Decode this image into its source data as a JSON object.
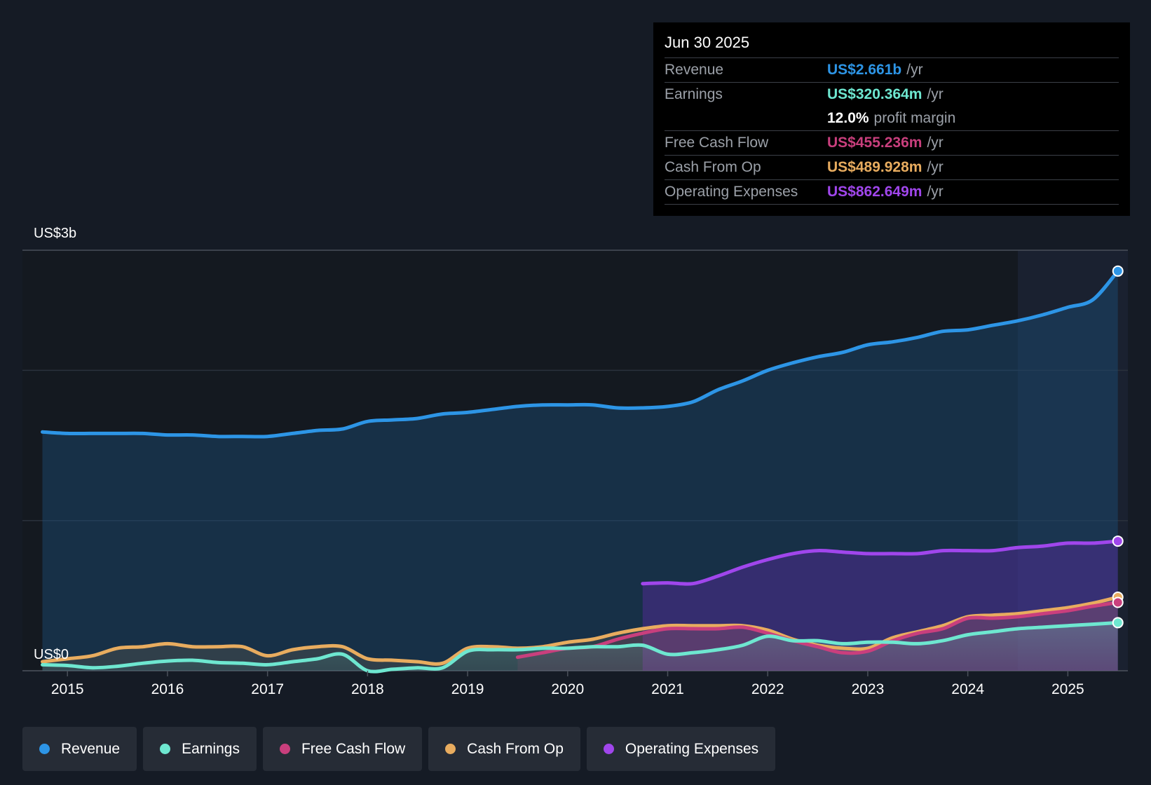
{
  "colors": {
    "revenue": "#2d95e6",
    "earnings": "#6ee7d0",
    "fcf": "#c93f7d",
    "cfo": "#e8ac5f",
    "opex": "#a046ec"
  },
  "tooltip": {
    "date": "Jun 30 2025",
    "rows": [
      {
        "label": "Revenue",
        "value": "US$2.661b",
        "unit": "/yr"
      },
      {
        "label": "Earnings",
        "value": "US$320.364m",
        "unit": "/yr"
      },
      {
        "margin_value": "12.0%",
        "margin_label": "profit margin"
      },
      {
        "label": "Free Cash Flow",
        "value": "US$455.236m",
        "unit": "/yr"
      },
      {
        "label": "Cash From Op",
        "value": "US$489.928m",
        "unit": "/yr"
      },
      {
        "label": "Operating Expenses",
        "value": "US$862.649m",
        "unit": "/yr"
      }
    ]
  },
  "legend": {
    "items": [
      {
        "label": "Revenue"
      },
      {
        "label": "Earnings"
      },
      {
        "label": "Free Cash Flow"
      },
      {
        "label": "Cash From Op"
      },
      {
        "label": "Operating Expenses"
      }
    ]
  },
  "chart_data": {
    "type": "area",
    "y_unit": "US$ billions",
    "ylim": [
      0,
      2.8
    ],
    "y_axis_labels": [
      {
        "value": 2.8,
        "label": "US$3b"
      },
      {
        "value": 0,
        "label": "US$0"
      }
    ],
    "gridlines": [
      0,
      1,
      2
    ],
    "x_ticks": [
      "2015",
      "2016",
      "2017",
      "2018",
      "2019",
      "2020",
      "2021",
      "2022",
      "2023",
      "2024",
      "2025"
    ],
    "xlim": [
      2014.55,
      2025.6
    ],
    "forecast_start": 2024.5,
    "series": [
      {
        "name": "Revenue",
        "key": "revenue",
        "x": [
          2014.75,
          2015.0,
          2015.25,
          2015.5,
          2015.75,
          2016.0,
          2016.25,
          2016.5,
          2016.75,
          2017.0,
          2017.25,
          2017.5,
          2017.75,
          2018.0,
          2018.25,
          2018.5,
          2018.75,
          2019.0,
          2019.25,
          2019.5,
          2019.75,
          2020.0,
          2020.25,
          2020.5,
          2020.75,
          2021.0,
          2021.25,
          2021.5,
          2021.75,
          2022.0,
          2022.25,
          2022.5,
          2022.75,
          2023.0,
          2023.25,
          2023.5,
          2023.75,
          2024.0,
          2024.25,
          2024.5,
          2024.75,
          2025.0,
          2025.25,
          2025.5
        ],
        "values": [
          1.59,
          1.58,
          1.58,
          1.58,
          1.58,
          1.57,
          1.57,
          1.56,
          1.56,
          1.56,
          1.58,
          1.6,
          1.61,
          1.66,
          1.67,
          1.68,
          1.71,
          1.72,
          1.74,
          1.76,
          1.77,
          1.77,
          1.77,
          1.75,
          1.75,
          1.76,
          1.79,
          1.87,
          1.93,
          2.0,
          2.05,
          2.09,
          2.12,
          2.17,
          2.19,
          2.22,
          2.26,
          2.27,
          2.3,
          2.33,
          2.37,
          2.42,
          2.47,
          2.661
        ]
      },
      {
        "name": "Earnings",
        "key": "earnings",
        "x": [
          2014.75,
          2015.0,
          2015.25,
          2015.5,
          2015.75,
          2016.0,
          2016.25,
          2016.5,
          2016.75,
          2017.0,
          2017.25,
          2017.5,
          2017.75,
          2018.0,
          2018.25,
          2018.5,
          2018.75,
          2019.0,
          2019.25,
          2019.5,
          2019.75,
          2020.0,
          2020.25,
          2020.5,
          2020.75,
          2021.0,
          2021.25,
          2021.5,
          2021.75,
          2022.0,
          2022.25,
          2022.5,
          2022.75,
          2023.0,
          2023.25,
          2023.5,
          2023.75,
          2024.0,
          2024.25,
          2024.5,
          2024.75,
          2025.0,
          2025.25,
          2025.5
        ],
        "values": [
          0.04,
          0.035,
          0.02,
          0.03,
          0.05,
          0.065,
          0.07,
          0.055,
          0.05,
          0.04,
          0.06,
          0.08,
          0.11,
          0.0,
          0.01,
          0.02,
          0.02,
          0.13,
          0.14,
          0.14,
          0.15,
          0.15,
          0.16,
          0.16,
          0.17,
          0.11,
          0.12,
          0.14,
          0.17,
          0.23,
          0.2,
          0.2,
          0.18,
          0.19,
          0.19,
          0.18,
          0.2,
          0.24,
          0.26,
          0.28,
          0.29,
          0.3,
          0.31,
          0.32
        ]
      },
      {
        "name": "Free Cash Flow",
        "key": "fcf",
        "x": [
          2019.5,
          2019.75,
          2020.0,
          2020.25,
          2020.5,
          2020.75,
          2021.0,
          2021.25,
          2021.5,
          2021.75,
          2022.0,
          2022.25,
          2022.5,
          2022.75,
          2023.0,
          2023.25,
          2023.5,
          2023.75,
          2024.0,
          2024.25,
          2024.5,
          2024.75,
          2025.0,
          2025.25,
          2025.5
        ],
        "values": [
          0.09,
          0.12,
          0.15,
          0.16,
          0.21,
          0.25,
          0.28,
          0.28,
          0.28,
          0.29,
          0.25,
          0.2,
          0.16,
          0.12,
          0.13,
          0.2,
          0.25,
          0.28,
          0.35,
          0.35,
          0.36,
          0.38,
          0.4,
          0.43,
          0.455
        ]
      },
      {
        "name": "Cash From Op",
        "key": "cfo",
        "x": [
          2014.75,
          2015.0,
          2015.25,
          2015.5,
          2015.75,
          2016.0,
          2016.25,
          2016.5,
          2016.75,
          2017.0,
          2017.25,
          2017.5,
          2017.75,
          2018.0,
          2018.25,
          2018.5,
          2018.75,
          2019.0,
          2019.25,
          2019.5,
          2019.75,
          2020.0,
          2020.25,
          2020.5,
          2020.75,
          2021.0,
          2021.25,
          2021.5,
          2021.75,
          2022.0,
          2022.25,
          2022.5,
          2022.75,
          2023.0,
          2023.25,
          2023.5,
          2023.75,
          2024.0,
          2024.25,
          2024.5,
          2024.75,
          2025.0,
          2025.25,
          2025.5
        ],
        "values": [
          0.06,
          0.08,
          0.1,
          0.15,
          0.16,
          0.18,
          0.16,
          0.16,
          0.16,
          0.1,
          0.14,
          0.16,
          0.16,
          0.08,
          0.07,
          0.06,
          0.05,
          0.15,
          0.16,
          0.15,
          0.16,
          0.19,
          0.21,
          0.25,
          0.28,
          0.3,
          0.3,
          0.3,
          0.3,
          0.27,
          0.21,
          0.17,
          0.15,
          0.15,
          0.22,
          0.26,
          0.3,
          0.36,
          0.37,
          0.38,
          0.4,
          0.42,
          0.45,
          0.49
        ]
      },
      {
        "name": "Operating Expenses",
        "key": "opex",
        "x": [
          2020.75,
          2021.0,
          2021.25,
          2021.5,
          2021.75,
          2022.0,
          2022.25,
          2022.5,
          2022.75,
          2023.0,
          2023.25,
          2023.5,
          2023.75,
          2024.0,
          2024.25,
          2024.5,
          2024.75,
          2025.0,
          2025.25,
          2025.5
        ],
        "values": [
          0.58,
          0.585,
          0.58,
          0.63,
          0.69,
          0.74,
          0.78,
          0.8,
          0.79,
          0.78,
          0.78,
          0.78,
          0.8,
          0.8,
          0.8,
          0.82,
          0.83,
          0.85,
          0.85,
          0.863
        ]
      }
    ]
  }
}
